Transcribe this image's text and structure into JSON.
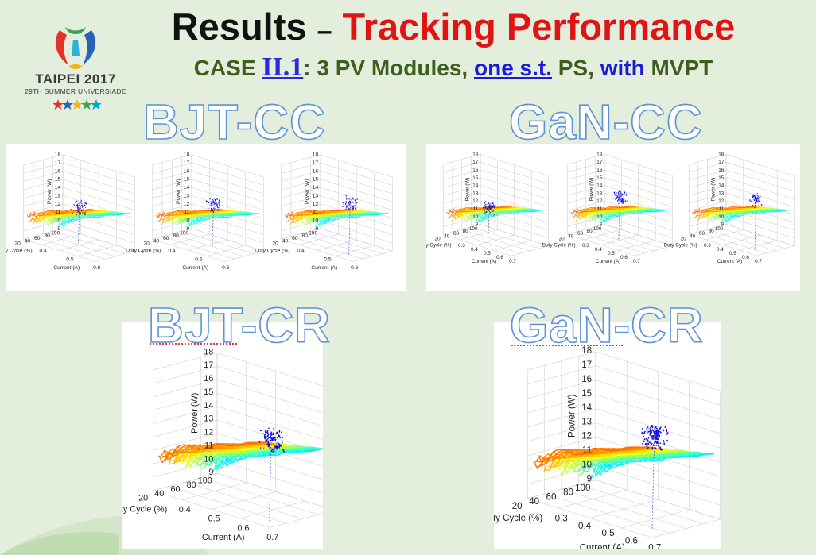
{
  "slide": {
    "title_black": "Results",
    "title_dash": "–",
    "title_red": "Tracking Performance",
    "subtitle_case": "CASE",
    "subtitle_case_id": "II.1",
    "subtitle_mid": ": 3 PV Modules,",
    "subtitle_blue_underlined": "one s.t.",
    "subtitle_ps": "PS,",
    "subtitle_with": "with",
    "subtitle_mvpt": "MVPT"
  },
  "logo": {
    "title": "TAIPEI 2017",
    "subtitle": "29TH SUMMER UNIVERSIADE",
    "colors": [
      "#e4322b",
      "#2a62b8",
      "#37a549",
      "#f2b31b",
      "#00a3d9"
    ]
  },
  "panels": [
    {
      "label": "BJT-CC"
    },
    {
      "label": "GaN-CC"
    },
    {
      "label": "BJT-CR"
    },
    {
      "label": "GaN-CR"
    }
  ],
  "colors": {
    "bg": "#e3eedc",
    "title_red": "#e01414",
    "subtitle_green": "#3d5e1d",
    "label_outline": "#5b93d6",
    "track_blue": "#1212d8"
  },
  "chart_data": [
    {
      "type": "surface3d",
      "panel": "BJT-CC",
      "subplots": 3,
      "xlabel": "Current (A)",
      "ylabel": "Duty Cycle (%)",
      "zlabel": "Power (W)",
      "x_ticks": [
        "0.4",
        "0.5",
        "0.6"
      ],
      "y_ticks": [
        "100",
        "80",
        "60",
        "40",
        "20"
      ],
      "z_ticks": [
        "9",
        "10",
        "11",
        "12",
        "13",
        "14",
        "15",
        "16",
        "17",
        "18"
      ],
      "zlim": [
        9,
        18
      ]
    },
    {
      "type": "surface3d",
      "panel": "GaN-CC",
      "subplots": 3,
      "xlabel": "Current (A)",
      "ylabel": "Duty Cycle (%)",
      "zlabel": "Power (W)",
      "x_ticks": [
        "0.3",
        "0.4",
        "0.5",
        "0.6",
        "0.7"
      ],
      "y_ticks": [
        "100",
        "80",
        "60",
        "40",
        "20"
      ],
      "z_ticks": [
        "9",
        "10",
        "11",
        "12",
        "13",
        "14",
        "15",
        "16",
        "17",
        "18"
      ],
      "zlim": [
        9,
        18
      ]
    },
    {
      "type": "surface3d",
      "panel": "BJT-CR",
      "subplots": 1,
      "xlabel": "Current (A)",
      "ylabel": "Duty Cycle (%)",
      "zlabel": "Power (W)",
      "x_ticks": [
        "0.4",
        "0.5",
        "0.6",
        "0.7"
      ],
      "y_ticks": [
        "100",
        "80",
        "60",
        "40",
        "20"
      ],
      "z_ticks": [
        "9",
        "10",
        "11",
        "12",
        "13",
        "14",
        "15",
        "16",
        "17",
        "18"
      ],
      "zlim": [
        9,
        18
      ]
    },
    {
      "type": "surface3d",
      "panel": "GaN-CR",
      "subplots": 1,
      "xlabel": "Current (A)",
      "ylabel": "Duty Cycle (%)",
      "zlabel": "Power (W)",
      "x_ticks": [
        "0.3",
        "0.4",
        "0.5",
        "0.6",
        "0.7"
      ],
      "y_ticks": [
        "100",
        "80",
        "60",
        "40",
        "20"
      ],
      "z_ticks": [
        "9",
        "10",
        "11",
        "12",
        "13",
        "14",
        "15",
        "16",
        "17",
        "18"
      ],
      "zlim": [
        9,
        18
      ]
    }
  ]
}
